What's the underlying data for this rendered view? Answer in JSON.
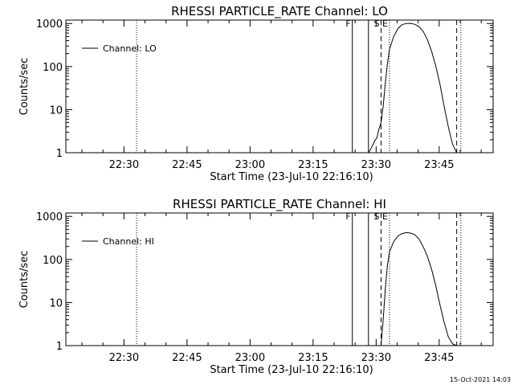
{
  "chart_data": [
    {
      "type": "line",
      "title": "RHESSI PARTICLE_RATE Channel: LO",
      "xlabel": "Start Time (23-Jul-10 22:16:10)",
      "ylabel": "Counts/sec",
      "yscale": "log",
      "ylim": [
        1,
        1200
      ],
      "xlim": [
        "22:16:10",
        "23:57:50"
      ],
      "xticks": [
        "22:30",
        "22:45",
        "23:00",
        "23:15",
        "23:30",
        "23:45"
      ],
      "yticks": [
        "1",
        "10",
        "100",
        "1000"
      ],
      "legend": {
        "label": "Channel: LO",
        "position": "top-left"
      },
      "markers": [
        {
          "label": "",
          "style": "dotted",
          "x": "22:33:00"
        },
        {
          "label": "F",
          "style": "solid",
          "x": "23:24:20"
        },
        {
          "label": "",
          "style": "solid",
          "x": "23:28:10"
        },
        {
          "label": "S",
          "style": "dashed",
          "x": "23:31:10"
        },
        {
          "label": "E",
          "style": "dotted",
          "x": "23:33:10"
        },
        {
          "label": "",
          "style": "dashed",
          "x": "23:49:10"
        },
        {
          "label": "",
          "style": "dotted",
          "x": "23:50:10"
        }
      ],
      "series": [
        {
          "name": "Channel: LO",
          "x": [
            "23:28:10",
            "23:28:40",
            "23:29:10",
            "23:29:40",
            "23:30:10",
            "23:30:40",
            "23:31:10",
            "23:31:40",
            "23:32:10",
            "23:32:40",
            "23:33:10",
            "23:34:10",
            "23:35:10",
            "23:36:10",
            "23:37:10",
            "23:38:10",
            "23:39:10",
            "23:40:10",
            "23:41:10",
            "23:42:10",
            "23:43:10",
            "23:44:10",
            "23:45:10",
            "23:46:10",
            "23:47:10",
            "23:48:10",
            "23:49:10"
          ],
          "y": [
            1,
            1.2,
            1.5,
            1.9,
            2.2,
            3.5,
            5,
            12,
            40,
            110,
            250,
            500,
            760,
            940,
            1000,
            1010,
            960,
            850,
            660,
            430,
            230,
            105,
            40,
            12,
            4,
            1.6,
            1
          ]
        }
      ]
    },
    {
      "type": "line",
      "title": "RHESSI PARTICLE_RATE Channel: HI",
      "xlabel": "Start Time (23-Jul-10 22:16:10)",
      "ylabel": "Counts/sec",
      "yscale": "log",
      "ylim": [
        1,
        1200
      ],
      "xlim": [
        "22:16:10",
        "23:57:50"
      ],
      "xticks": [
        "22:30",
        "22:45",
        "23:00",
        "23:15",
        "23:30",
        "23:45"
      ],
      "yticks": [
        "1",
        "10",
        "100",
        "1000"
      ],
      "legend": {
        "label": "Channel: HI",
        "position": "top-left"
      },
      "markers": [
        {
          "label": "",
          "style": "dotted",
          "x": "22:33:00"
        },
        {
          "label": "F",
          "style": "solid",
          "x": "23:24:20"
        },
        {
          "label": "",
          "style": "solid",
          "x": "23:28:10"
        },
        {
          "label": "S",
          "style": "dashed",
          "x": "23:31:10"
        },
        {
          "label": "E",
          "style": "dotted",
          "x": "23:33:10"
        },
        {
          "label": "",
          "style": "dashed",
          "x": "23:49:10"
        },
        {
          "label": "",
          "style": "dotted",
          "x": "23:50:10"
        }
      ],
      "series": [
        {
          "name": "Channel: HI",
          "x": [
            "23:31:10",
            "23:31:40",
            "23:32:10",
            "23:32:40",
            "23:33:10",
            "23:34:10",
            "23:35:10",
            "23:36:10",
            "23:37:10",
            "23:38:10",
            "23:39:10",
            "23:40:10",
            "23:41:10",
            "23:42:10",
            "23:43:10",
            "23:44:10",
            "23:45:10",
            "23:46:10",
            "23:47:10",
            "23:48:10",
            "23:49:10"
          ],
          "y": [
            1,
            4,
            20,
            70,
            150,
            260,
            350,
            400,
            420,
            410,
            380,
            300,
            200,
            120,
            60,
            25,
            9,
            3.5,
            1.6,
            1.1,
            1
          ]
        }
      ]
    }
  ],
  "footer": {
    "timestamp": "15-Oct-2021 14:03"
  }
}
